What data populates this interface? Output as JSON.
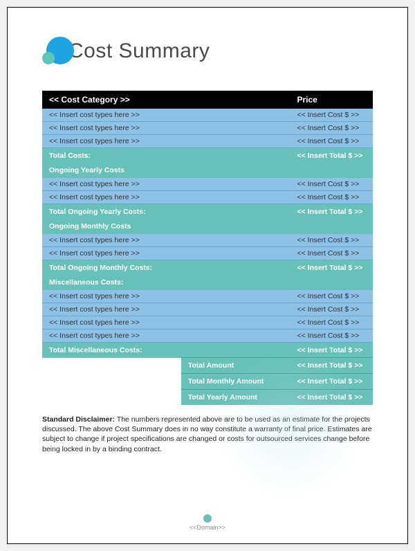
{
  "title": "Cost Summary",
  "colors": {
    "header_bg": "#000000",
    "header_fg": "#ffffff",
    "data_bg": "#8ec1e6",
    "data_fg": "#333333",
    "sub_bg": "#68c1b8",
    "sub_fg": "#ffffff",
    "logo_big": "#1da3e0",
    "logo_small": "#5bc7bd",
    "page_bg": "#ffffff"
  },
  "table": {
    "header": {
      "cat": "<< Cost Category >>",
      "price": "Price"
    },
    "sections": [
      {
        "rows": [
          {
            "label": "<< Insert cost types here >>",
            "price": "<< Insert Cost $ >>"
          },
          {
            "label": "<< Insert cost types here >>",
            "price": "<< Insert Cost $ >>"
          },
          {
            "label": "<< Insert cost types here >>",
            "price": "<< Insert Cost $ >>"
          }
        ],
        "subtotal_label": "Total Costs:",
        "subtotal_price": "<< Insert Total $ >>",
        "next_heading": "Ongoing Yearly Costs"
      },
      {
        "rows": [
          {
            "label": "<< Insert cost types here >>",
            "price": "<< Insert Cost $ >>"
          },
          {
            "label": "<< Insert cost types here >>",
            "price": "<< Insert Cost $ >>"
          }
        ],
        "subtotal_label": "Total Ongoing Yearly Costs:",
        "subtotal_price": "<< Insert Total $ >>",
        "next_heading": "Ongoing Monthly Costs"
      },
      {
        "rows": [
          {
            "label": "<< Insert cost types here >>",
            "price": "<< Insert Cost $ >>"
          },
          {
            "label": "<< Insert cost types here >>",
            "price": "<< Insert Cost $ >>"
          }
        ],
        "subtotal_label": "Total Ongoing Monthly Costs:",
        "subtotal_price": "<< Insert Total $ >>",
        "next_heading": "Miscellaneous Costs:"
      },
      {
        "rows": [
          {
            "label": "<< Insert cost types here >>",
            "price": "<< Insert Cost $ >>"
          },
          {
            "label": "<< Insert cost types here >>",
            "price": "<< Insert Cost $ >>"
          },
          {
            "label": "<< Insert cost types here >>",
            "price": "<< Insert Cost $ >>"
          },
          {
            "label": "<< Insert cost types here >>",
            "price": "<< Insert Cost $ >>"
          }
        ],
        "subtotal_label": "Total Miscellaneous Costs:",
        "subtotal_price": "<< Insert Total $ >>",
        "next_heading": null
      }
    ],
    "totals": [
      {
        "label": "Total Amount",
        "price": "<< Insert Total $ >>"
      },
      {
        "label": "Total Monthly Amount",
        "price": "<< Insert Total $ >>"
      },
      {
        "label": "Total Yearly Amount",
        "price": "<< Insert Total $ >>"
      }
    ]
  },
  "disclaimer": {
    "heading": "Standard Disclaimer:",
    "body": " The numbers represented above are to be used as an estimate for the projects discussed. The above Cost Summary does in no way constitute a warranty of final price. Estimates are subject to change if project specifications are changed or costs for outsourced services change before being locked in by a binding contract."
  },
  "footer": "<<Domain>>"
}
